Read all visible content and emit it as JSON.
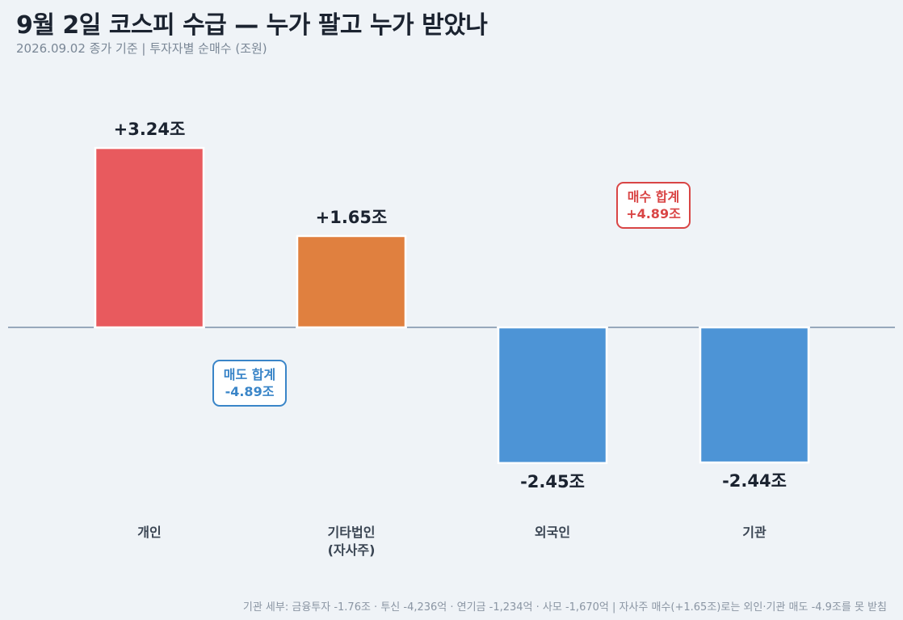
{
  "header": {
    "title": "9월 2일 코스피 수급 — 누가 팔고 누가 받았나",
    "subtitle": "2026.09.02 종가 기준  |  투자자별 순매수 (조원)"
  },
  "footnote": "기관 세부: 금융투자 -1.76조 · 투신 -4,236억 · 연기금 -1,234억 · 사모 -1,670억  |  자사주 매수(+1.65조)로는 외인·기관 매도 -4.9조를 못 받침",
  "colors": {
    "background": "#eff3f7",
    "individual": "#e85a5e",
    "corporate": "#e0803f",
    "sell": "#4d94d6",
    "baseline": "#7a90a8",
    "buy_box": "#d94545",
    "sell_box": "#3a85c8"
  },
  "chart_data": {
    "type": "bar",
    "categories": [
      [
        "개인"
      ],
      [
        "기타법인",
        "(자사주)"
      ],
      [
        "외국인"
      ],
      [
        "기관"
      ]
    ],
    "values": [
      3.24,
      1.65,
      -2.45,
      -2.44
    ],
    "data_labels": [
      "+3.24조",
      "+1.65조",
      "-2.45조",
      "-2.44조"
    ],
    "bar_colors": [
      "#e85a5e",
      "#e0803f",
      "#4d94d6",
      "#4d94d6"
    ],
    "ylim": [
      -3.0,
      4.5
    ],
    "grid": false,
    "annotations": [
      {
        "label": "매수 합계",
        "value": "+4.89조",
        "color": "#d94545",
        "kind": "buy"
      },
      {
        "label": "매도 합계",
        "value": "-4.89조",
        "color": "#3a85c8",
        "kind": "sell"
      }
    ]
  }
}
